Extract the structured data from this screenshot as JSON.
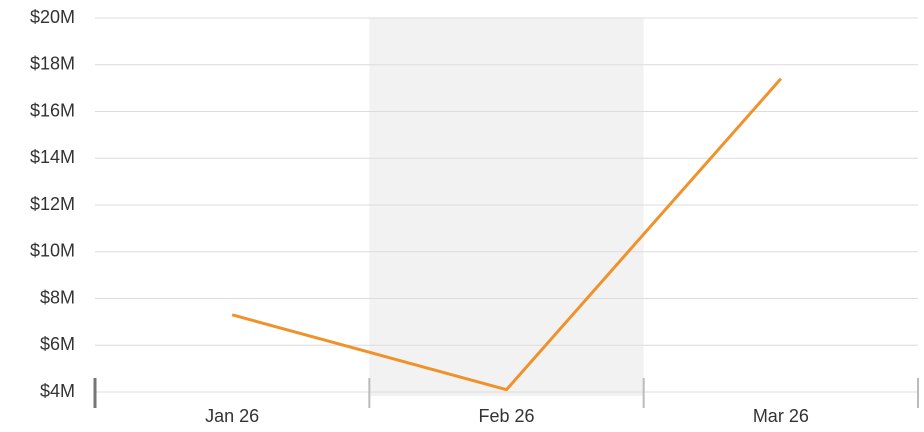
{
  "chart_data": {
    "type": "line",
    "categories": [
      "Jan 26",
      "Feb 26",
      "Mar 26"
    ],
    "series": [
      {
        "color": "#f0922b",
        "values": [
          7300000,
          4100000,
          17400000
        ]
      }
    ],
    "ylim": [
      4000000,
      20000000
    ],
    "yticks": [
      {
        "value": 4000000,
        "label": "$4M"
      },
      {
        "value": 6000000,
        "label": "$6M"
      },
      {
        "value": 8000000,
        "label": "$8M"
      },
      {
        "value": 10000000,
        "label": "$10M"
      },
      {
        "value": 12000000,
        "label": "$12M"
      },
      {
        "value": 14000000,
        "label": "$14M"
      },
      {
        "value": 16000000,
        "label": "$16M"
      },
      {
        "value": 18000000,
        "label": "$18M"
      },
      {
        "value": 20000000,
        "label": "$20M"
      }
    ],
    "grid": true
  }
}
